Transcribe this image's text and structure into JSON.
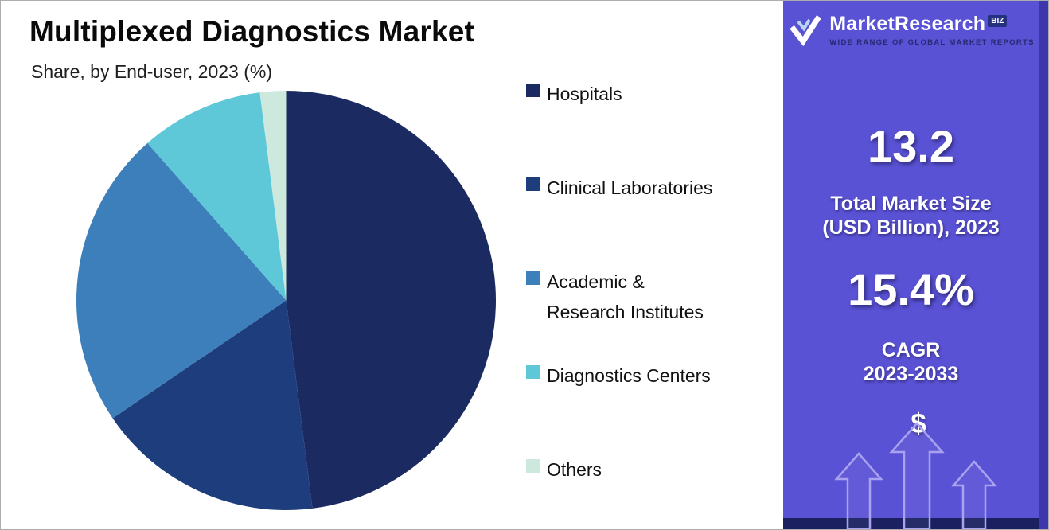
{
  "header": {
    "title": "Multiplexed Diagnostics Market",
    "subtitle": "Share, by End-user, 2023 (%)"
  },
  "chart_data": {
    "type": "pie",
    "title": "Multiplexed Diagnostics Market",
    "subtitle": "Share, by End-user, 2023 (%)",
    "categories": [
      "Hospitals",
      "Clinical Laboratories",
      "Academic & Research Institutes",
      "Diagnostics Centers",
      "Others"
    ],
    "values": [
      48,
      17.5,
      23,
      9.5,
      2
    ],
    "unit": "%",
    "colors": [
      "#1b2a60",
      "#1e3d7d",
      "#3d7fba",
      "#5ec7d8",
      "#cde8dd"
    ],
    "start_angle": "top",
    "direction": "clockwise",
    "legend_position": "right"
  },
  "legend": {
    "items": [
      {
        "label": "Hospitals"
      },
      {
        "label": "Clinical Laboratories"
      },
      {
        "label": "Academic &\nResearch Institutes"
      },
      {
        "label": "Diagnostics Centers"
      },
      {
        "label": "Others"
      }
    ]
  },
  "sidebar": {
    "brand": {
      "name": "MarketResearch",
      "suffix": "BIZ",
      "tagline": "WIDE RANGE OF GLOBAL MARKET REPORTS"
    },
    "market_size": {
      "value": "13.2",
      "label_line1": "Total Market Size",
      "label_line2": "(USD Billion), 2023"
    },
    "cagr": {
      "value": "15.4%",
      "label_line1": "CAGR",
      "label_line2": "2023-2033"
    },
    "currency_icon": "$",
    "colors": {
      "background": "#5a52d5",
      "edge_strip": "#3e37ab",
      "bottom_strip": "#1b2160"
    }
  }
}
